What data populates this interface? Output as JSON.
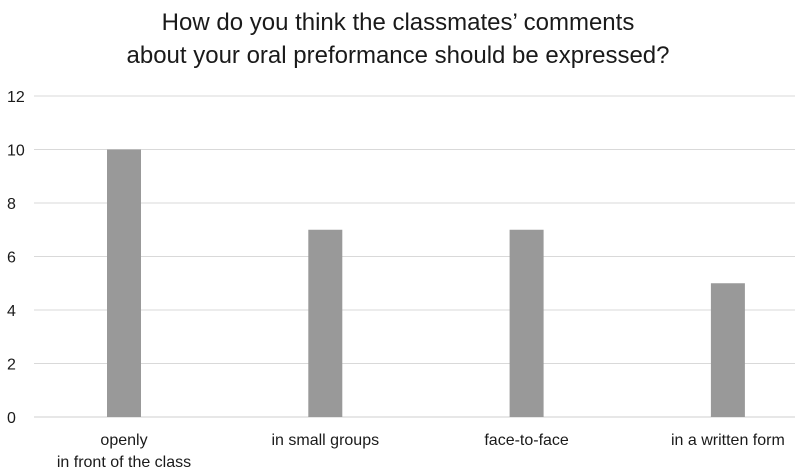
{
  "chart_data": {
    "type": "bar",
    "title_lines": [
      "How do you think the classmates’ comments",
      "about your oral preformance should be expressed?"
    ],
    "categories": [
      [
        "openly",
        "in front of the class"
      ],
      [
        "in small groups"
      ],
      [
        "face-to-face"
      ],
      [
        "in a written form"
      ]
    ],
    "values": [
      10,
      7,
      7,
      5
    ],
    "ylim": [
      0,
      12
    ],
    "yticks": [
      0,
      2,
      4,
      6,
      8,
      10,
      12
    ],
    "grid": true,
    "legend": "none",
    "bar_color": "#999999",
    "grid_color": "#d9d9d9"
  }
}
